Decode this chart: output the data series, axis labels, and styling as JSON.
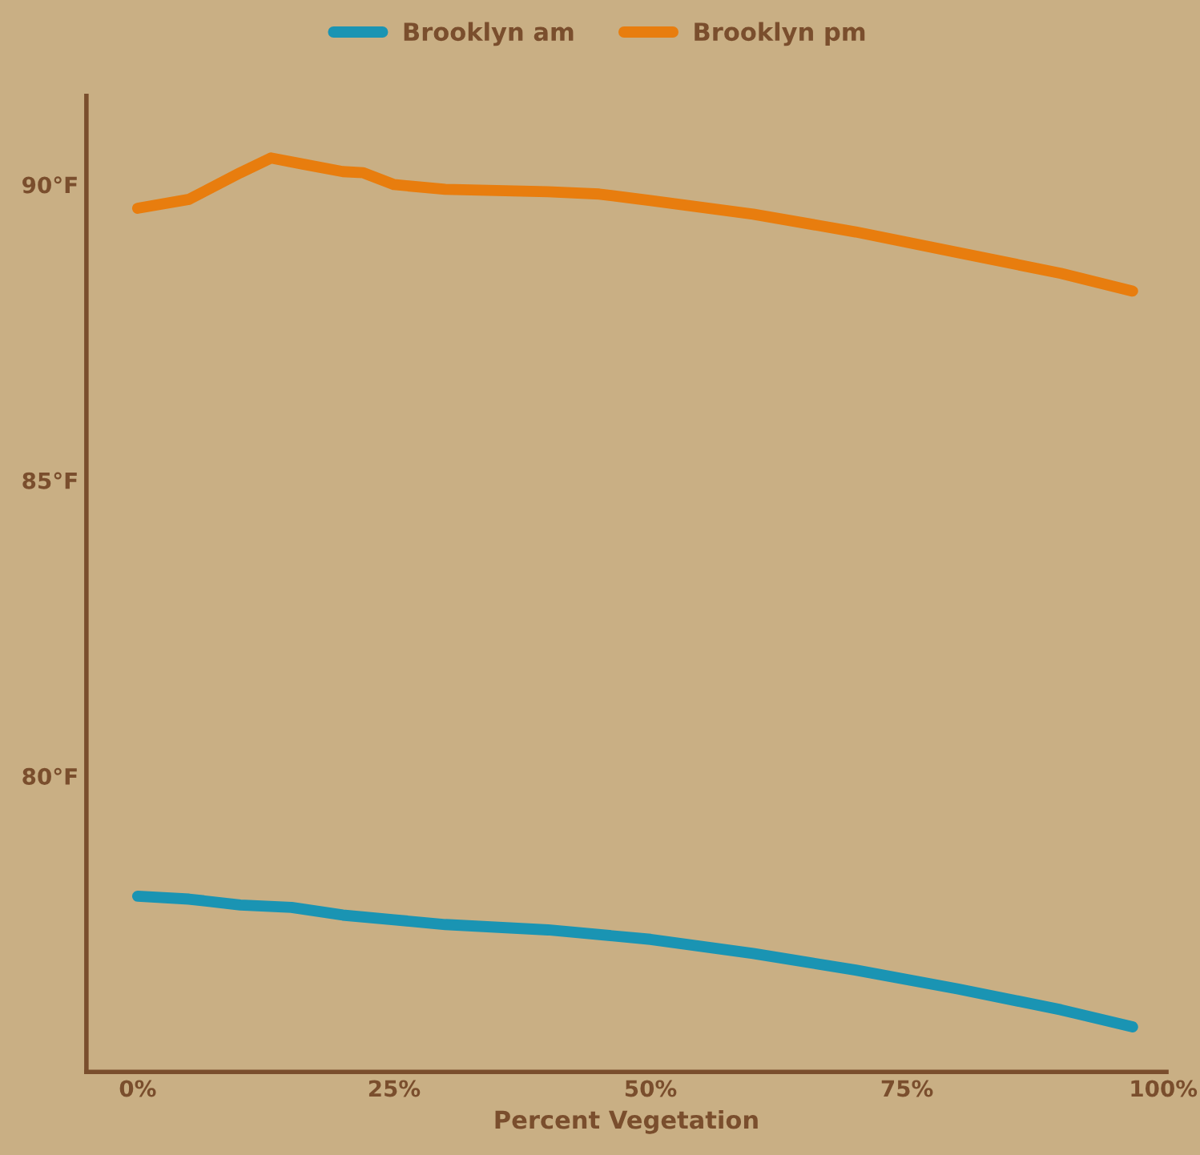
{
  "chart_data": {
    "type": "line",
    "xlabel": "Percent Vegetation",
    "xlim": [
      -5,
      100.3
    ],
    "ylim": [
      75,
      91.5
    ],
    "xticks": [
      {
        "value": 0,
        "label": "0%"
      },
      {
        "value": 25,
        "label": "25%"
      },
      {
        "value": 50,
        "label": "50%"
      },
      {
        "value": 75,
        "label": "75%"
      },
      {
        "value": 100,
        "label": "100%"
      }
    ],
    "yticks": [
      {
        "value": 80,
        "label": "80°F"
      },
      {
        "value": 85,
        "label": "85°F"
      },
      {
        "value": 90,
        "label": "90°F"
      }
    ],
    "legend": "top",
    "grid": false,
    "marker": "none",
    "line_style": "solid",
    "series": [
      {
        "name": "Brooklyn am",
        "color": "#1a94b3",
        "x": [
          0,
          5,
          10,
          15,
          20,
          25,
          30,
          40,
          50,
          60,
          70,
          80,
          90,
          97
        ],
        "values": [
          77.97,
          77.92,
          77.82,
          77.78,
          77.65,
          77.57,
          77.49,
          77.4,
          77.24,
          77.0,
          76.72,
          76.4,
          76.05,
          75.76
        ]
      },
      {
        "name": "Brooklyn pm",
        "color": "#e87d0e",
        "x": [
          0,
          5,
          10,
          13,
          16,
          20,
          22,
          25,
          30,
          40,
          45,
          50,
          60,
          70,
          80,
          90,
          97
        ],
        "values": [
          89.6,
          89.75,
          90.2,
          90.45,
          90.35,
          90.22,
          90.2,
          90.0,
          89.92,
          89.88,
          89.84,
          89.73,
          89.5,
          89.2,
          88.85,
          88.5,
          88.2
        ]
      }
    ]
  }
}
